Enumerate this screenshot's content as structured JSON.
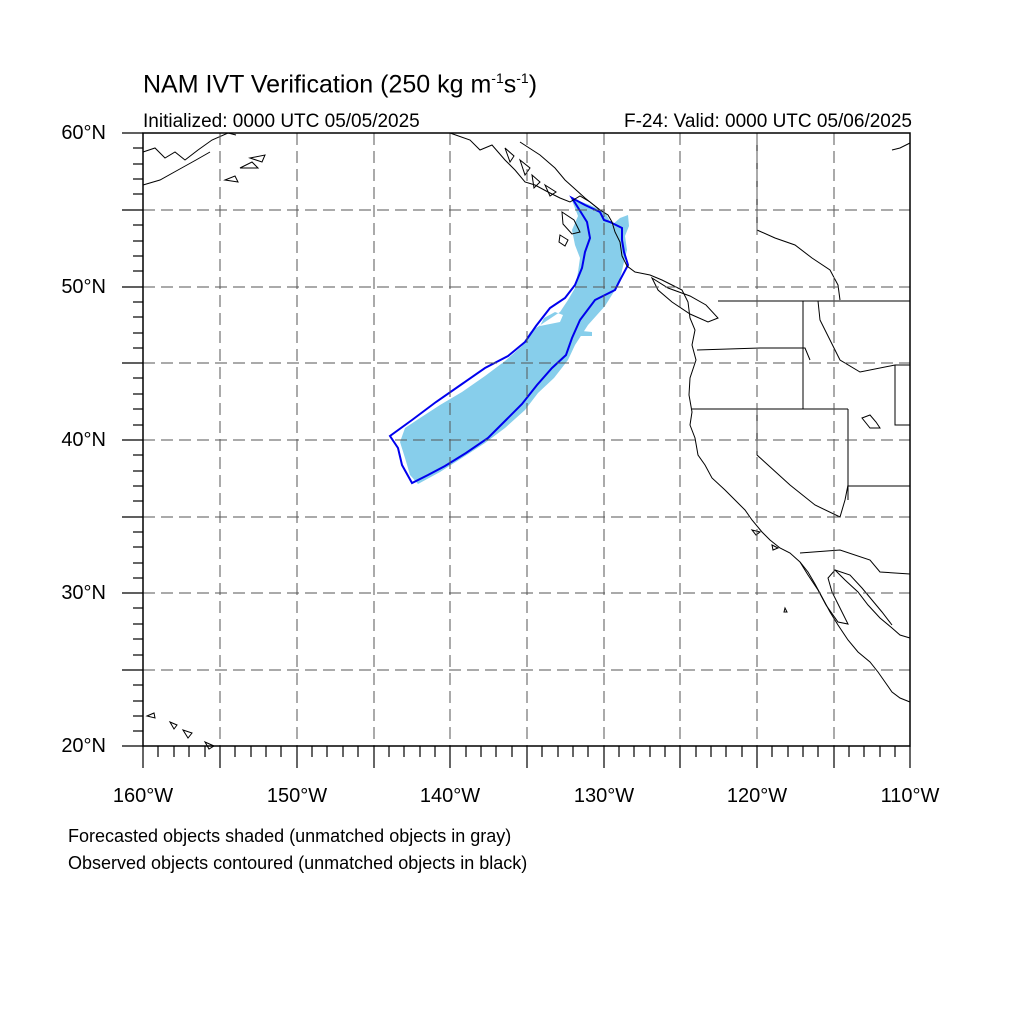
{
  "title": {
    "prefix": "NAM IVT Verification (250 kg m",
    "exp1": "-1",
    "mid": "s",
    "exp2": "-1",
    "suffix": ")"
  },
  "initialized": "Initialized: 0000 UTC 05/05/2025",
  "valid": "F-24: Valid: 0000 UTC 05/06/2025",
  "lat_labels": [
    "60°N",
    "50°N",
    "40°N",
    "30°N",
    "20°N"
  ],
  "lon_labels": [
    "160°W",
    "150°W",
    "140°W",
    "130°W",
    "120°W",
    "110°W"
  ],
  "notes": [
    "Forecasted objects shaded (unmatched objects in gray)",
    "Observed objects contoured (unmatched objects in black)"
  ],
  "map": {
    "lat_range": [
      20,
      60
    ],
    "lon_range": [
      -160,
      -110
    ],
    "grid_interval_deg": 5,
    "grid_style": "dashed",
    "forecast_fill_color": "#87CEEB",
    "observed_contour_color": "#0000EE"
  }
}
